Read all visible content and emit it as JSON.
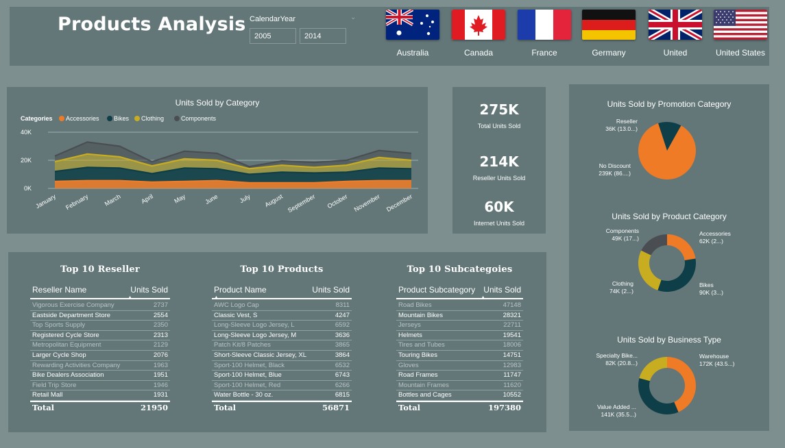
{
  "header": {
    "title": "Products Analysis",
    "slicer": {
      "label": "CalendarYear",
      "from": "2005",
      "to": "2014"
    },
    "countries": [
      "Australia",
      "Canada",
      "France",
      "Germany",
      "United",
      "United States"
    ]
  },
  "area_chart": {
    "title": "Units Sold by Category",
    "legend_title": "Categories",
    "colors": {
      "Accessories": "#f07b26",
      "Bikes": "#0e3e48",
      "Clothing": "#c9ad21",
      "Components": "#4a4e52"
    },
    "chart_data": {
      "type": "area",
      "stacked": true,
      "categories": [
        "January",
        "February",
        "March",
        "April",
        "May",
        "June",
        "July",
        "August",
        "September",
        "October",
        "November",
        "December"
      ],
      "series": [
        {
          "name": "Accessories",
          "values": [
            5000,
            5500,
            5500,
            4500,
            5000,
            5500,
            4000,
            4000,
            4000,
            5000,
            5500,
            5500
          ]
        },
        {
          "name": "Bikes",
          "values": [
            7000,
            9500,
            9000,
            6000,
            9500,
            8500,
            6000,
            7500,
            7000,
            6500,
            9000,
            8500
          ]
        },
        {
          "name": "Clothing",
          "values": [
            7000,
            9500,
            8000,
            5500,
            6500,
            6000,
            4000,
            5000,
            4000,
            5000,
            7500,
            6000
          ]
        },
        {
          "name": "Components",
          "values": [
            4000,
            8500,
            7500,
            3000,
            5500,
            5000,
            1500,
            3000,
            3500,
            3500,
            5000,
            5000
          ]
        }
      ],
      "yticks": [
        "0K",
        "20K",
        "40K"
      ],
      "ylim": [
        0,
        40000
      ],
      "legend_position": "top-left",
      "grid": true
    }
  },
  "kpis": [
    {
      "value": "275K",
      "label": "Total Units Sold"
    },
    {
      "value": "214K",
      "label": "Reseller Units Sold"
    },
    {
      "value": "60K",
      "label": "Internet Units Sold"
    }
  ],
  "tables": [
    {
      "title": "Top 10 Reseller",
      "col1": "Reseller Name",
      "col2": "Units Sold",
      "rows": [
        [
          "Vigorous Exercise Company",
          "2737"
        ],
        [
          "Eastside Department Store",
          "2554"
        ],
        [
          "Top Sports Supply",
          "2350"
        ],
        [
          "Registered Cycle Store",
          "2313"
        ],
        [
          "Metropolitan Equipment",
          "2129"
        ],
        [
          "Larger Cycle Shop",
          "2076"
        ],
        [
          "Rewarding Activities Company",
          "1963"
        ],
        [
          "Bike Dealers Association",
          "1951"
        ],
        [
          "Field Trip Store",
          "1946"
        ],
        [
          "Retail Mall",
          "1931"
        ]
      ],
      "total_label": "Total",
      "total": "21950"
    },
    {
      "title": "Top 10 Products",
      "col1": "Product Name",
      "col2": "Units Sold",
      "rows": [
        [
          "AWC Logo Cap",
          "8311"
        ],
        [
          "Classic Vest, S",
          "4247"
        ],
        [
          "Long-Sleeve Logo Jersey, L",
          "6592"
        ],
        [
          "Long-Sleeve Logo Jersey, M",
          "3636"
        ],
        [
          "Patch Kit/8 Patches",
          "3865"
        ],
        [
          "Short-Sleeve Classic Jersey, XL",
          "3864"
        ],
        [
          "Sport-100 Helmet, Black",
          "6532"
        ],
        [
          "Sport-100 Helmet, Blue",
          "6743"
        ],
        [
          "Sport-100 Helmet, Red",
          "6266"
        ],
        [
          "Water Bottle - 30 oz.",
          "6815"
        ]
      ],
      "total_label": "Total",
      "total": "56871"
    },
    {
      "title": "Top 10 Subcategoies",
      "col1": "Product Subcategory",
      "col2": "Units Sold",
      "rows": [
        [
          "Road Bikes",
          "47148"
        ],
        [
          "Mountain Bikes",
          "28321"
        ],
        [
          "Jerseys",
          "22711"
        ],
        [
          "Helmets",
          "19541"
        ],
        [
          "Tires and Tubes",
          "18006"
        ],
        [
          "Touring Bikes",
          "14751"
        ],
        [
          "Gloves",
          "12983"
        ],
        [
          "Road Frames",
          "11747"
        ],
        [
          "Mountain Frames",
          "11620"
        ],
        [
          "Bottles and Cages",
          "10552"
        ]
      ],
      "total_label": "Total",
      "total": "197380"
    }
  ],
  "pies": [
    {
      "title": "Units Sold by Promotion Category",
      "type": "pie",
      "slices": [
        {
          "name": "Reseller",
          "label": "36K (13.0...)",
          "value": 36,
          "color": "#0e3e48"
        },
        {
          "name": "No Discount",
          "label": "239K (86....)",
          "value": 239,
          "color": "#f07b26"
        }
      ]
    },
    {
      "title": "Units Sold by Product Category",
      "type": "donut",
      "slices": [
        {
          "name": "Accessories",
          "label": "62K (2...)",
          "value": 62,
          "color": "#f07b26"
        },
        {
          "name": "Bikes",
          "label": "90K (3...)",
          "value": 90,
          "color": "#0e3e48"
        },
        {
          "name": "Clothing",
          "label": "74K (2...)",
          "value": 74,
          "color": "#c9ad21"
        },
        {
          "name": "Components",
          "label": "49K (17...)",
          "value": 49,
          "color": "#4a4e52"
        }
      ]
    },
    {
      "title": "Units Sold by Business Type",
      "type": "donut",
      "slices": [
        {
          "name": "Warehouse",
          "label": "172K (43.5...)",
          "value": 172,
          "color": "#f07b26"
        },
        {
          "name": "Value Added ...",
          "label": "141K (35.5...)",
          "value": 141,
          "color": "#0e3e48"
        },
        {
          "name": "Specialty Bike...",
          "label": "82K (20.8...)",
          "value": 82,
          "color": "#c9ad21"
        }
      ]
    }
  ]
}
